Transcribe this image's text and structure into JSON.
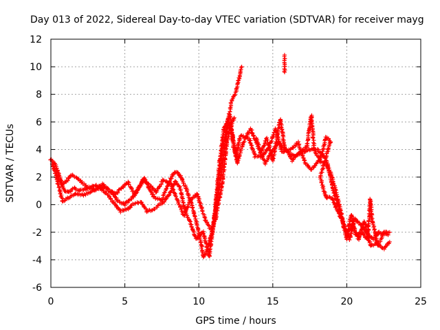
{
  "chart_data": {
    "type": "scatter",
    "title": "Day 013 of 2022, Sidereal Day-to-day VTEC variation (SDTVAR) for receiver mayg",
    "xlabel": "GPS time / hours",
    "ylabel": "SDTVAR / TECUs",
    "xlim": [
      0,
      25
    ],
    "ylim": [
      -6,
      12
    ],
    "xticks": [
      0,
      5,
      10,
      15,
      20,
      25
    ],
    "yticks": [
      -6,
      -4,
      -2,
      0,
      2,
      4,
      6,
      8,
      10,
      12
    ],
    "grid": true,
    "marker": "plus",
    "color": "#ff0000",
    "series_traces": [
      [
        [
          0.0,
          3.3
        ],
        [
          0.3,
          2.9
        ],
        [
          0.6,
          2.0
        ],
        [
          0.9,
          1.0
        ],
        [
          1.2,
          0.9
        ],
        [
          1.6,
          1.2
        ],
        [
          2.0,
          1.0
        ],
        [
          2.5,
          1.2
        ],
        [
          3.0,
          1.4
        ],
        [
          3.5,
          1.2
        ],
        [
          3.7,
          1.3
        ],
        [
          4.1,
          0.9
        ],
        [
          4.5,
          0.3
        ],
        [
          5.0,
          0.0
        ],
        [
          5.5,
          0.5
        ],
        [
          6.0,
          1.3
        ],
        [
          6.3,
          2.0
        ],
        [
          6.6,
          1.2
        ],
        [
          7.0,
          0.5
        ],
        [
          7.5,
          0.3
        ],
        [
          7.8,
          1.2
        ],
        [
          8.2,
          2.1
        ],
        [
          8.5,
          2.4
        ],
        [
          8.8,
          2.0
        ],
        [
          9.2,
          1.0
        ],
        [
          9.6,
          -0.3
        ],
        [
          10.0,
          -2.0
        ],
        [
          10.3,
          -3.8
        ],
        [
          10.6,
          -3.2
        ],
        [
          11.0,
          -1.5
        ],
        [
          11.3,
          1.5
        ],
        [
          11.6,
          4.0
        ],
        [
          12.0,
          6.0
        ],
        [
          12.3,
          5.0
        ],
        [
          12.6,
          3.0
        ],
        [
          13.0,
          4.5
        ],
        [
          13.5,
          5.5
        ],
        [
          14.0,
          4.2
        ],
        [
          14.5,
          3.0
        ],
        [
          15.0,
          4.0
        ],
        [
          15.4,
          4.5
        ],
        [
          15.8,
          4.0
        ],
        [
          16.5,
          3.5
        ],
        [
          17.0,
          3.8
        ],
        [
          17.5,
          4.0
        ],
        [
          18.0,
          4.0
        ],
        [
          18.5,
          3.5
        ],
        [
          19.0,
          2.0
        ],
        [
          19.5,
          0.0
        ],
        [
          19.8,
          -1.5
        ],
        [
          20.2,
          -2.5
        ],
        [
          20.5,
          -1.0
        ],
        [
          21.0,
          -1.5
        ],
        [
          21.3,
          -2.0
        ],
        [
          21.8,
          -2.5
        ],
        [
          22.2,
          -2.0
        ],
        [
          22.8,
          -2.2
        ]
      ],
      [
        [
          0.2,
          2.6
        ],
        [
          0.5,
          1.5
        ],
        [
          0.8,
          0.2
        ],
        [
          1.2,
          0.5
        ],
        [
          1.7,
          0.8
        ],
        [
          2.2,
          0.7
        ],
        [
          2.8,
          1.0
        ],
        [
          3.3,
          1.2
        ],
        [
          3.8,
          0.8
        ],
        [
          4.2,
          0.2
        ],
        [
          4.7,
          -0.5
        ],
        [
          5.2,
          -0.3
        ],
        [
          5.6,
          0.1
        ],
        [
          6.1,
          0.2
        ],
        [
          6.5,
          -0.5
        ],
        [
          7.0,
          -0.3
        ],
        [
          7.6,
          0.2
        ],
        [
          8.0,
          0.7
        ],
        [
          8.4,
          1.7
        ],
        [
          8.7,
          1.3
        ],
        [
          9.1,
          -0.5
        ],
        [
          9.5,
          -1.5
        ],
        [
          9.8,
          -2.5
        ],
        [
          10.3,
          -2.0
        ],
        [
          10.7,
          -3.8
        ],
        [
          11.1,
          -0.5
        ],
        [
          11.4,
          3.0
        ],
        [
          11.7,
          5.5
        ],
        [
          12.1,
          6.5
        ],
        [
          12.3,
          4.5
        ],
        [
          12.5,
          3.5
        ],
        [
          12.8,
          5.0
        ],
        [
          13.4,
          4.8
        ],
        [
          13.8,
          3.5
        ],
        [
          14.3,
          3.5
        ],
        [
          14.8,
          4.3
        ],
        [
          15.2,
          5.5
        ],
        [
          15.6,
          3.8
        ],
        [
          16.2,
          4.0
        ],
        [
          16.7,
          4.5
        ],
        [
          17.2,
          3.0
        ],
        [
          17.6,
          2.5
        ],
        [
          18.1,
          3.2
        ],
        [
          18.7,
          2.8
        ],
        [
          19.1,
          1.0
        ],
        [
          19.6,
          -0.8
        ],
        [
          20.0,
          -2.0
        ],
        [
          20.4,
          -1.5
        ],
        [
          20.8,
          -2.5
        ],
        [
          21.2,
          -1.2
        ],
        [
          21.6,
          -3.0
        ],
        [
          22.0,
          -2.8
        ],
        [
          22.5,
          -3.2
        ],
        [
          22.9,
          -2.7
        ]
      ],
      [
        [
          0.1,
          3.0
        ],
        [
          0.4,
          2.2
        ],
        [
          0.7,
          1.5
        ],
        [
          1.0,
          1.6
        ],
        [
          1.4,
          2.2
        ],
        [
          1.9,
          1.8
        ],
        [
          2.4,
          1.3
        ],
        [
          3.0,
          1.1
        ],
        [
          3.5,
          1.5
        ],
        [
          3.9,
          1.0
        ],
        [
          4.4,
          0.8
        ],
        [
          4.9,
          1.3
        ],
        [
          5.2,
          1.6
        ],
        [
          5.7,
          0.7
        ],
        [
          6.2,
          1.8
        ],
        [
          6.6,
          1.5
        ],
        [
          7.1,
          0.9
        ],
        [
          7.6,
          1.8
        ],
        [
          8.1,
          1.5
        ],
        [
          8.6,
          0.2
        ],
        [
          9.0,
          -0.8
        ],
        [
          9.4,
          0.3
        ],
        [
          9.9,
          0.8
        ],
        [
          10.4,
          -1.0
        ],
        [
          10.9,
          -2.0
        ],
        [
          11.2,
          0.0
        ],
        [
          11.5,
          2.0
        ],
        [
          11.9,
          5.5
        ],
        [
          12.2,
          7.5
        ],
        [
          12.5,
          8.2
        ],
        [
          12.7,
          9.0
        ],
        [
          12.9,
          10.0
        ]
      ],
      [
        [
          11.1,
          -1.2
        ],
        [
          11.3,
          0.0
        ],
        [
          11.5,
          1.0
        ],
        [
          11.7,
          2.5
        ],
        [
          11.9,
          4.5
        ],
        [
          12.1,
          5.5
        ],
        [
          12.4,
          6.3
        ]
      ],
      [
        [
          13.9,
          4.8
        ],
        [
          14.2,
          3.8
        ],
        [
          14.6,
          4.8
        ],
        [
          15.0,
          3.2
        ],
        [
          15.3,
          5.0
        ],
        [
          15.5,
          6.2
        ],
        [
          15.8,
          4.2
        ],
        [
          16.3,
          3.2
        ],
        [
          16.8,
          3.8
        ],
        [
          17.3,
          4.2
        ],
        [
          17.6,
          6.5
        ],
        [
          17.8,
          4.0
        ],
        [
          18.2,
          3.2
        ],
        [
          18.6,
          4.9
        ],
        [
          18.9,
          4.6
        ],
        [
          18.2,
          2.0
        ],
        [
          18.6,
          0.5
        ],
        [
          19.0,
          0.5
        ],
        [
          19.4,
          -0.5
        ],
        [
          19.7,
          -1.2
        ],
        [
          20.0,
          -2.5
        ],
        [
          20.3,
          -0.7
        ],
        [
          20.6,
          -2.2
        ],
        [
          21.0,
          -2.0
        ],
        [
          21.4,
          -2.5
        ],
        [
          21.6,
          0.4
        ],
        [
          21.7,
          -1.0
        ],
        [
          22.1,
          -3.0
        ],
        [
          22.5,
          -2.0
        ],
        [
          22.9,
          -2.0
        ]
      ],
      [
        [
          15.8,
          10.8
        ],
        [
          15.8,
          10.5
        ],
        [
          15.8,
          10.2
        ],
        [
          15.8,
          9.9
        ],
        [
          15.8,
          9.6
        ]
      ]
    ]
  }
}
